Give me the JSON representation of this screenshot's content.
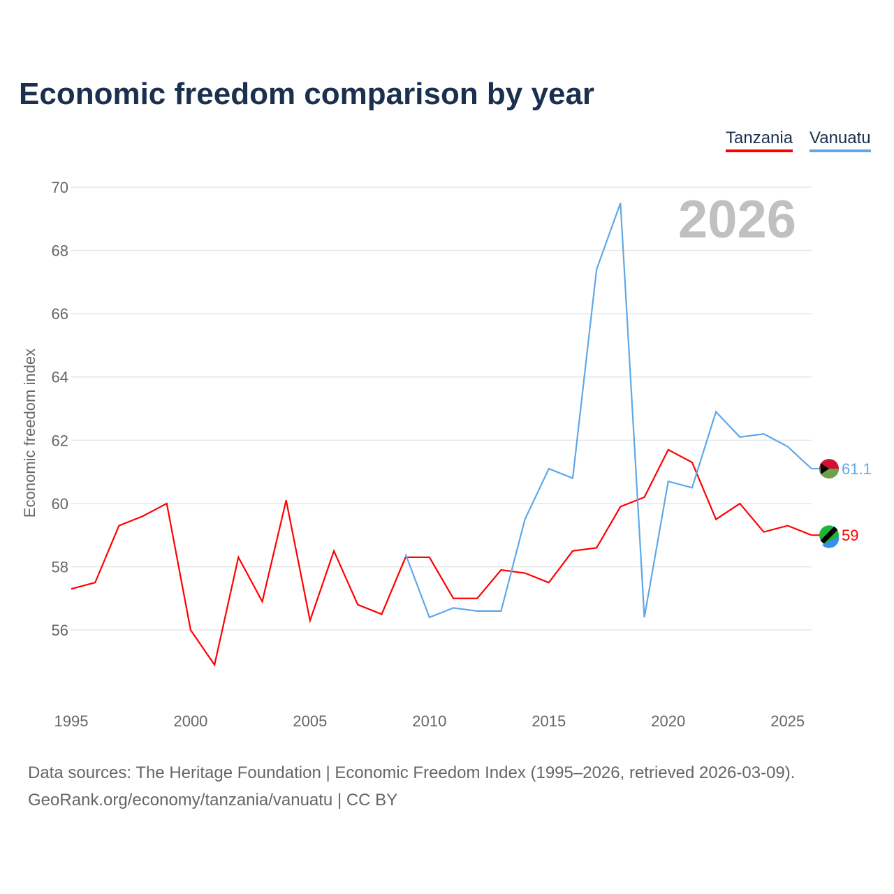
{
  "chart_data": {
    "type": "line",
    "title": "Economic freedom comparison by year",
    "ylabel": "Economic freedom index",
    "xlabel": "",
    "ylim": [
      54.5,
      70
    ],
    "xlim": [
      1995,
      2026
    ],
    "yticks": [
      56,
      58,
      60,
      62,
      64,
      66,
      68,
      70
    ],
    "xticks": [
      1995,
      2000,
      2005,
      2010,
      2015,
      2020,
      2025
    ],
    "year_watermark": "2026",
    "legend_position": "top-right",
    "series": [
      {
        "name": "Tanzania",
        "color": "#ff0000",
        "end_label": "59",
        "x": [
          1995,
          1996,
          1997,
          1998,
          1999,
          2000,
          2001,
          2002,
          2003,
          2004,
          2005,
          2006,
          2007,
          2008,
          2009,
          2010,
          2011,
          2012,
          2013,
          2014,
          2015,
          2016,
          2017,
          2018,
          2019,
          2020,
          2021,
          2022,
          2023,
          2024,
          2025,
          2026
        ],
        "values": [
          57.3,
          57.5,
          59.3,
          59.6,
          60.0,
          56.0,
          54.9,
          58.3,
          56.9,
          60.1,
          56.3,
          58.5,
          56.8,
          56.5,
          58.3,
          58.3,
          57.0,
          57.0,
          57.9,
          57.8,
          57.5,
          58.5,
          58.6,
          59.9,
          60.2,
          61.7,
          61.3,
          59.5,
          60.0,
          59.1,
          59.3,
          59.0
        ]
      },
      {
        "name": "Vanuatu",
        "color": "#5fa8e8",
        "end_label": "61.1",
        "x": [
          2009,
          2010,
          2011,
          2012,
          2013,
          2014,
          2015,
          2016,
          2017,
          2018,
          2019,
          2020,
          2021,
          2022,
          2023,
          2024,
          2025,
          2026
        ],
        "values": [
          58.4,
          56.4,
          56.7,
          56.6,
          56.6,
          59.5,
          61.1,
          60.8,
          67.4,
          69.5,
          56.4,
          60.7,
          60.5,
          62.9,
          62.1,
          62.2,
          61.8,
          61.1
        ]
      }
    ]
  },
  "footer": {
    "line1": "Data sources: The Heritage Foundation | Economic Freedom Index (1995–2026, retrieved 2026-03-09).",
    "line2": "GeoRank.org/economy/tanzania/vanuatu | CC BY"
  }
}
